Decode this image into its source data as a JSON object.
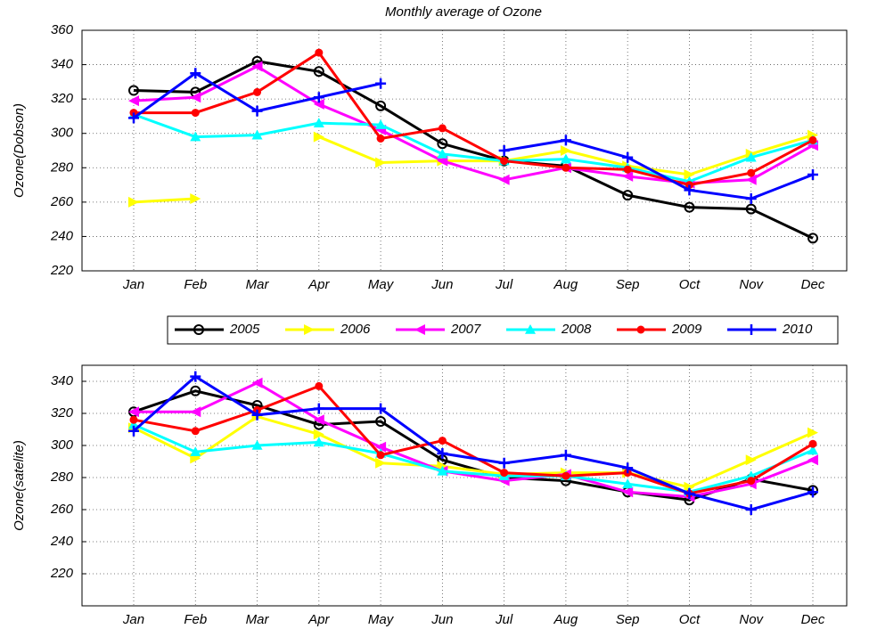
{
  "chart_data": [
    {
      "type": "line",
      "title": "Monthly average of Ozone",
      "y_label": "Ozone(Dobson)",
      "categories": [
        "Jan",
        "Feb",
        "Mar",
        "Apr",
        "May",
        "Jun",
        "Jul",
        "Aug",
        "Sep",
        "Oct",
        "Nov",
        "Dec"
      ],
      "ylim": [
        220,
        360
      ],
      "yticks": [
        220,
        240,
        260,
        280,
        300,
        320,
        340,
        360
      ],
      "grid": true,
      "series": [
        {
          "name": "2005",
          "color": "#000000",
          "marker": "o",
          "values": [
            325,
            324,
            342,
            336,
            316,
            294,
            284,
            281,
            264,
            257,
            256,
            239
          ]
        },
        {
          "name": "2006",
          "color": "#ffff00",
          "marker": ">",
          "values": [
            260,
            262,
            null,
            298,
            283,
            284,
            284,
            290,
            281,
            276,
            288,
            299
          ]
        },
        {
          "name": "2007",
          "color": "#ff00ff",
          "marker": "<",
          "values": [
            319,
            321,
            339,
            317,
            302,
            284,
            273,
            280,
            275,
            271,
            273,
            293
          ]
        },
        {
          "name": "2008",
          "color": "#00ffff",
          "marker": "^",
          "values": [
            311,
            298,
            299,
            306,
            305,
            288,
            284,
            285,
            280,
            272,
            286,
            296
          ]
        },
        {
          "name": "2009",
          "color": "#ff0000",
          "marker": ".",
          "values": [
            312,
            312,
            324,
            347,
            297,
            303,
            284,
            280,
            279,
            270,
            277,
            296
          ]
        },
        {
          "name": "2010",
          "color": "#0000ff",
          "marker": "+",
          "values": [
            309,
            335,
            313,
            321,
            329,
            null,
            290,
            296,
            286,
            267,
            262,
            276
          ]
        }
      ]
    },
    {
      "type": "line",
      "y_label": "Ozone(satelite)",
      "categories": [
        "Jan",
        "Feb",
        "Mar",
        "Apr",
        "May",
        "Jun",
        "Jul",
        "Aug",
        "Sep",
        "Oct",
        "Nov",
        "Dec"
      ],
      "ylim": [
        200,
        350
      ],
      "yticks": [
        220,
        240,
        260,
        280,
        300,
        320,
        340
      ],
      "grid": true,
      "series": [
        {
          "color": "#000000",
          "marker": "o",
          "values": [
            321,
            334,
            325,
            313,
            315,
            291,
            280,
            278,
            271,
            266,
            279,
            272
          ]
        },
        {
          "color": "#ffff00",
          "marker": ">",
          "values": [
            311,
            292,
            318,
            307,
            289,
            287,
            282,
            283,
            283,
            274,
            291,
            308
          ]
        },
        {
          "color": "#ff00ff",
          "marker": "<",
          "values": [
            321,
            321,
            339,
            316,
            299,
            284,
            278,
            282,
            271,
            268,
            276,
            291
          ]
        },
        {
          "color": "#00ffff",
          "marker": "^",
          "values": [
            313,
            296,
            300,
            302,
            295,
            284,
            281,
            281,
            276,
            271,
            281,
            297
          ]
        },
        {
          "color": "#ff0000",
          "marker": ".",
          "values": [
            316,
            309,
            322,
            337,
            294,
            303,
            283,
            281,
            283,
            270,
            278,
            301
          ]
        },
        {
          "color": "#0000ff",
          "marker": "+",
          "values": [
            309,
            343,
            319,
            323,
            323,
            295,
            289,
            294,
            286,
            270,
            260,
            271
          ]
        }
      ]
    }
  ]
}
